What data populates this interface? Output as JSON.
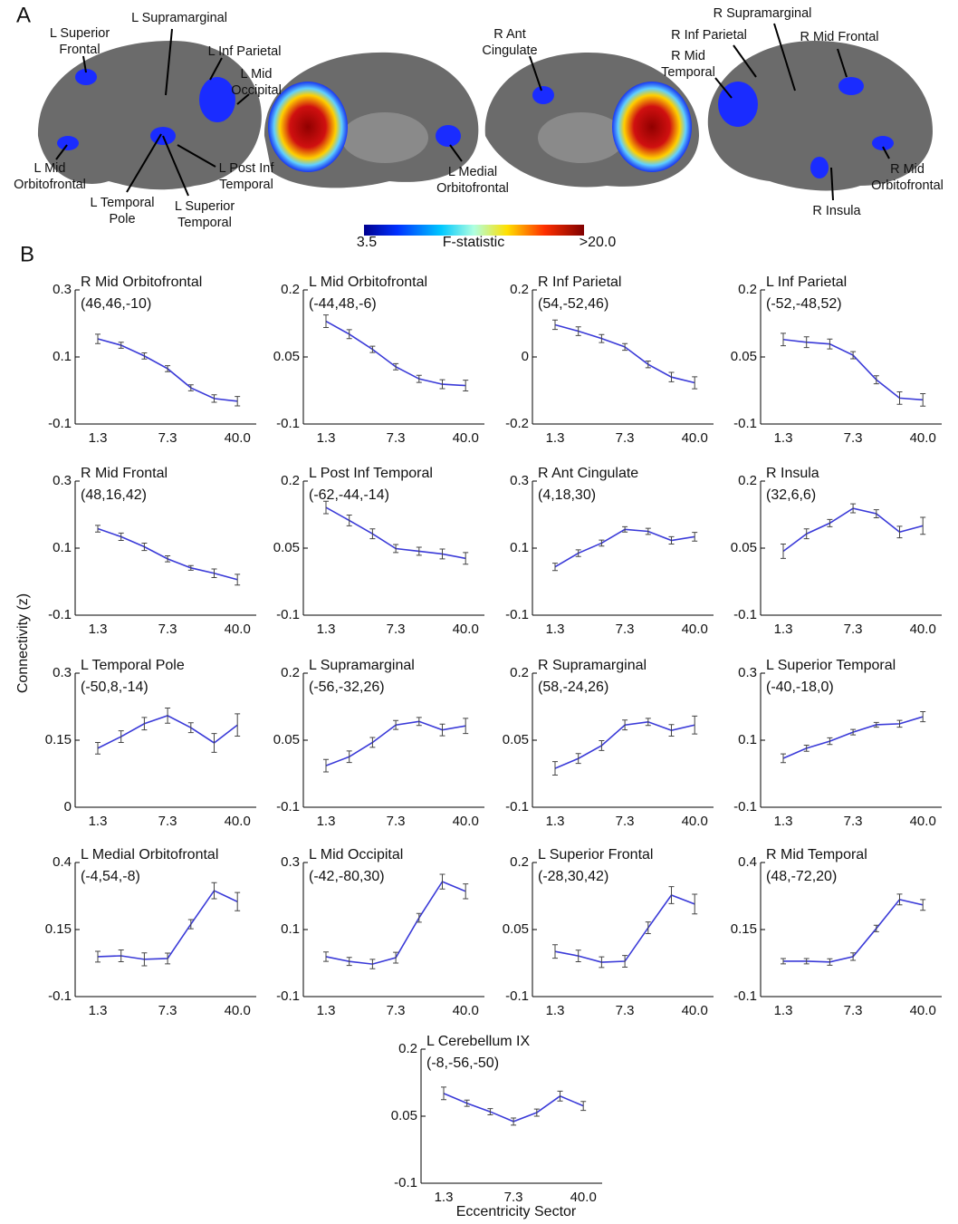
{
  "figure": {
    "panel_a_letter": "A",
    "panel_b_letter": "B",
    "y_label": "Connectivity (z)",
    "x_label": "Eccentricity Sector",
    "colorbar": {
      "title": "F-statistic",
      "ticks": [
        3.5,
        {
          "value": 20,
          "label": ">20.0"
        }
      ]
    },
    "brain_labels": [
      [
        "L Superior",
        "Frontal"
      ],
      [
        "L Supramarginal"
      ],
      [
        "L Inf Parietal"
      ],
      [
        "L Mid",
        "Occipital"
      ],
      [
        "L Mid",
        "Orbitofrontal"
      ],
      [
        "L Temporal",
        "Pole"
      ],
      [
        "L Superior",
        "Temporal"
      ],
      [
        "L Post Inf",
        "Temporal"
      ],
      [
        "R Ant",
        "Cingulate"
      ],
      [
        "L Medial",
        "Orbitofrontal"
      ],
      [
        "R Supramarginal"
      ],
      [
        "R Inf Parietal"
      ],
      [
        "R Mid",
        "Temporal"
      ],
      [
        "R Mid Frontal"
      ],
      [
        "R Mid",
        "Orbitofrontal"
      ],
      [
        "R Insula"
      ]
    ]
  },
  "chart_data": [
    {
      "type": "line",
      "title": "R Mid Orbitofrontal",
      "subtitle": "(46,46,-10)",
      "categories": [
        "1.3",
        null,
        null,
        "7.3",
        null,
        null,
        "40.0"
      ],
      "series": [
        {
          "color": "#3a3ad8",
          "values": [
            0.154,
            0.135,
            0.103,
            0.065,
            0.008,
            -0.024,
            -0.032
          ],
          "errors": [
            0.014,
            0.009,
            0.009,
            0.009,
            0.009,
            0.011,
            0.014
          ]
        }
      ],
      "ylim": [
        -0.1,
        0.3
      ],
      "yticks": [
        0.3,
        0.1,
        -0.1
      ]
    },
    {
      "type": "line",
      "title": "L Mid Orbitofrontal",
      "subtitle": "(-44,48,-6)",
      "categories": [
        "1.3",
        null,
        null,
        "7.3",
        null,
        null,
        "40.0"
      ],
      "series": [
        {
          "color": "#3a3ad8",
          "values": [
            0.13,
            0.101,
            0.067,
            0.028,
            0.001,
            -0.011,
            -0.014
          ],
          "errors": [
            0.014,
            0.01,
            0.007,
            0.007,
            0.008,
            0.01,
            0.012
          ]
        }
      ],
      "ylim": [
        -0.1,
        0.2
      ],
      "yticks": [
        0.2,
        0.05,
        -0.1
      ]
    },
    {
      "type": "line",
      "title": "R Inf Parietal",
      "subtitle": "(54,-52,46)",
      "categories": [
        "1.3",
        null,
        null,
        "7.3",
        null,
        null,
        "40.0"
      ],
      "series": [
        {
          "color": "#3a3ad8",
          "values": [
            0.096,
            0.077,
            0.055,
            0.03,
            -0.022,
            -0.06,
            -0.077
          ],
          "errors": [
            0.014,
            0.013,
            0.012,
            0.01,
            0.01,
            0.014,
            0.018
          ]
        }
      ],
      "ylim": [
        -0.2,
        0.2
      ],
      "yticks": [
        0.2,
        0,
        -0.2
      ]
    },
    {
      "type": "line",
      "title": "L Inf Parietal",
      "subtitle": "(-52,-48,52)",
      "categories": [
        "1.3",
        null,
        null,
        "7.3",
        null,
        null,
        "40.0"
      ],
      "series": [
        {
          "color": "#3a3ad8",
          "values": [
            0.089,
            0.083,
            0.079,
            0.054,
            -0.001,
            -0.042,
            -0.046
          ],
          "errors": [
            0.014,
            0.012,
            0.011,
            0.008,
            0.009,
            0.014,
            0.014
          ]
        }
      ],
      "ylim": [
        -0.1,
        0.2
      ],
      "yticks": [
        0.2,
        0.05,
        -0.1
      ]
    },
    {
      "type": "line",
      "title": "R Mid Frontal",
      "subtitle": "(48,16,42)",
      "categories": [
        "1.3",
        null,
        null,
        "7.3",
        null,
        null,
        "40.0"
      ],
      "series": [
        {
          "color": "#3a3ad8",
          "values": [
            0.158,
            0.134,
            0.104,
            0.068,
            0.041,
            0.025,
            0.006
          ],
          "errors": [
            0.01,
            0.011,
            0.011,
            0.009,
            0.007,
            0.013,
            0.016
          ]
        }
      ],
      "ylim": [
        -0.1,
        0.3
      ],
      "yticks": [
        0.3,
        0.1,
        -0.1
      ]
    },
    {
      "type": "line",
      "title": "L Post Inf Temporal",
      "subtitle": "(-62,-44,-14)",
      "categories": [
        "1.3",
        null,
        null,
        "7.3",
        null,
        null,
        "40.0"
      ],
      "series": [
        {
          "color": "#3a3ad8",
          "values": [
            0.141,
            0.112,
            0.082,
            0.049,
            0.043,
            0.037,
            0.027
          ],
          "errors": [
            0.014,
            0.012,
            0.011,
            0.009,
            0.009,
            0.011,
            0.013
          ]
        }
      ],
      "ylim": [
        -0.1,
        0.2
      ],
      "yticks": [
        0.2,
        0.05,
        -0.1
      ]
    },
    {
      "type": "line",
      "title": "R Ant Cingulate",
      "subtitle": "(4,18,30)",
      "categories": [
        "1.3",
        null,
        null,
        "7.3",
        null,
        null,
        "40.0"
      ],
      "series": [
        {
          "color": "#3a3ad8",
          "values": [
            0.044,
            0.085,
            0.115,
            0.156,
            0.15,
            0.123,
            0.134
          ],
          "errors": [
            0.011,
            0.01,
            0.009,
            0.008,
            0.009,
            0.011,
            0.013
          ]
        }
      ],
      "ylim": [
        -0.1,
        0.3
      ],
      "yticks": [
        0.3,
        0.1,
        -0.1
      ]
    },
    {
      "type": "line",
      "title": "R Insula",
      "subtitle": "(32,6,6)",
      "categories": [
        "1.3",
        null,
        null,
        "7.3",
        null,
        null,
        "40.0"
      ],
      "series": [
        {
          "color": "#3a3ad8",
          "values": [
            0.043,
            0.082,
            0.106,
            0.139,
            0.127,
            0.086,
            0.1
          ],
          "errors": [
            0.016,
            0.011,
            0.008,
            0.01,
            0.009,
            0.013,
            0.019
          ]
        }
      ],
      "ylim": [
        -0.1,
        0.2
      ],
      "yticks": [
        0.2,
        0.05,
        -0.1
      ]
    },
    {
      "type": "line",
      "title": "L Temporal Pole",
      "subtitle": "(-50,8,-14)",
      "categories": [
        "1.3",
        null,
        null,
        "7.3",
        null,
        null,
        "40.0"
      ],
      "series": [
        {
          "color": "#3a3ad8",
          "values": [
            0.132,
            0.158,
            0.187,
            0.205,
            0.178,
            0.144,
            0.184
          ],
          "errors": [
            0.013,
            0.013,
            0.014,
            0.017,
            0.011,
            0.021,
            0.025
          ]
        }
      ],
      "ylim": [
        0,
        0.3
      ],
      "yticks": [
        0.3,
        0.15,
        0
      ]
    },
    {
      "type": "line",
      "title": "L Supramarginal",
      "subtitle": "(-56,-32,26)",
      "categories": [
        "1.3",
        null,
        null,
        "7.3",
        null,
        null,
        "40.0"
      ],
      "series": [
        {
          "color": "#3a3ad8",
          "values": [
            -0.007,
            0.013,
            0.045,
            0.084,
            0.092,
            0.073,
            0.082
          ],
          "errors": [
            0.014,
            0.013,
            0.011,
            0.01,
            0.009,
            0.013,
            0.017
          ]
        }
      ],
      "ylim": [
        -0.1,
        0.2
      ],
      "yticks": [
        0.2,
        0.05,
        -0.1
      ]
    },
    {
      "type": "line",
      "title": "R Supramarginal",
      "subtitle": "(58,-24,26)",
      "categories": [
        "1.3",
        null,
        null,
        "7.3",
        null,
        null,
        "40.0"
      ],
      "series": [
        {
          "color": "#3a3ad8",
          "values": [
            -0.013,
            0.009,
            0.038,
            0.084,
            0.091,
            0.072,
            0.084
          ],
          "errors": [
            0.015,
            0.011,
            0.011,
            0.011,
            0.008,
            0.013,
            0.02
          ]
        }
      ],
      "ylim": [
        -0.1,
        0.2
      ],
      "yticks": [
        0.2,
        0.05,
        -0.1
      ]
    },
    {
      "type": "line",
      "title": "L Superior Temporal",
      "subtitle": "(-40,-18,0)",
      "categories": [
        "1.3",
        null,
        null,
        "7.3",
        null,
        null,
        "40.0"
      ],
      "series": [
        {
          "color": "#3a3ad8",
          "values": [
            0.046,
            0.076,
            0.097,
            0.124,
            0.146,
            0.149,
            0.17
          ],
          "errors": [
            0.013,
            0.009,
            0.01,
            0.008,
            0.007,
            0.01,
            0.015
          ]
        }
      ],
      "ylim": [
        -0.1,
        0.3
      ],
      "yticks": [
        0.3,
        0.1,
        -0.1
      ]
    },
    {
      "type": "line",
      "title": "L Medial Orbitofrontal",
      "subtitle": "(-4,54,-8)",
      "categories": [
        "1.3",
        null,
        null,
        "7.3",
        null,
        null,
        "40.0"
      ],
      "series": [
        {
          "color": "#3a3ad8",
          "values": [
            0.049,
            0.052,
            0.039,
            0.042,
            0.17,
            0.295,
            0.254
          ],
          "errors": [
            0.02,
            0.022,
            0.024,
            0.02,
            0.017,
            0.03,
            0.034
          ]
        }
      ],
      "ylim": [
        -0.1,
        0.4
      ],
      "yticks": [
        0.4,
        0.15,
        -0.1
      ]
    },
    {
      "type": "line",
      "title": "L Mid Occipital",
      "subtitle": "(-42,-80,30)",
      "categories": [
        "1.3",
        null,
        null,
        "7.3",
        null,
        null,
        "40.0"
      ],
      "series": [
        {
          "color": "#3a3ad8",
          "values": [
            0.019,
            0.005,
            -0.003,
            0.016,
            0.135,
            0.243,
            0.214
          ],
          "errors": [
            0.014,
            0.012,
            0.014,
            0.016,
            0.013,
            0.022,
            0.022
          ]
        }
      ],
      "ylim": [
        -0.1,
        0.3
      ],
      "yticks": [
        0.3,
        0.1,
        -0.1
      ]
    },
    {
      "type": "line",
      "title": "L Superior Frontal",
      "subtitle": "(-28,30,42)",
      "categories": [
        "1.3",
        null,
        null,
        "7.3",
        null,
        null,
        "40.0"
      ],
      "series": [
        {
          "color": "#3a3ad8",
          "values": [
            0.001,
            -0.009,
            -0.023,
            -0.021,
            0.054,
            0.127,
            0.107
          ],
          "errors": [
            0.015,
            0.013,
            0.012,
            0.013,
            0.013,
            0.019,
            0.022
          ]
        }
      ],
      "ylim": [
        -0.1,
        0.2
      ],
      "yticks": [
        0.2,
        0.05,
        -0.1
      ]
    },
    {
      "type": "line",
      "title": "R Mid Temporal",
      "subtitle": "(48,-72,20)",
      "categories": [
        "1.3",
        null,
        null,
        "7.3",
        null,
        null,
        "40.0"
      ],
      "series": [
        {
          "color": "#3a3ad8",
          "values": [
            0.032,
            0.032,
            0.029,
            0.049,
            0.154,
            0.262,
            0.242
          ],
          "errors": [
            0.01,
            0.01,
            0.012,
            0.014,
            0.012,
            0.02,
            0.02
          ]
        }
      ],
      "ylim": [
        -0.1,
        0.4
      ],
      "yticks": [
        0.4,
        0.15,
        -0.1
      ]
    },
    {
      "type": "line",
      "title": "L Cerebellum IX",
      "subtitle": "(-8,-56,-50)",
      "categories": [
        "1.3",
        null,
        null,
        "7.3",
        null,
        null,
        "40.0"
      ],
      "series": [
        {
          "color": "#3a3ad8",
          "values": [
            0.101,
            0.079,
            0.06,
            0.038,
            0.058,
            0.095,
            0.073
          ],
          "errors": [
            0.014,
            0.007,
            0.007,
            0.008,
            0.008,
            0.011,
            0.01
          ]
        }
      ],
      "ylim": [
        -0.1,
        0.2
      ],
      "yticks": [
        0.2,
        0.05,
        -0.1
      ]
    }
  ]
}
